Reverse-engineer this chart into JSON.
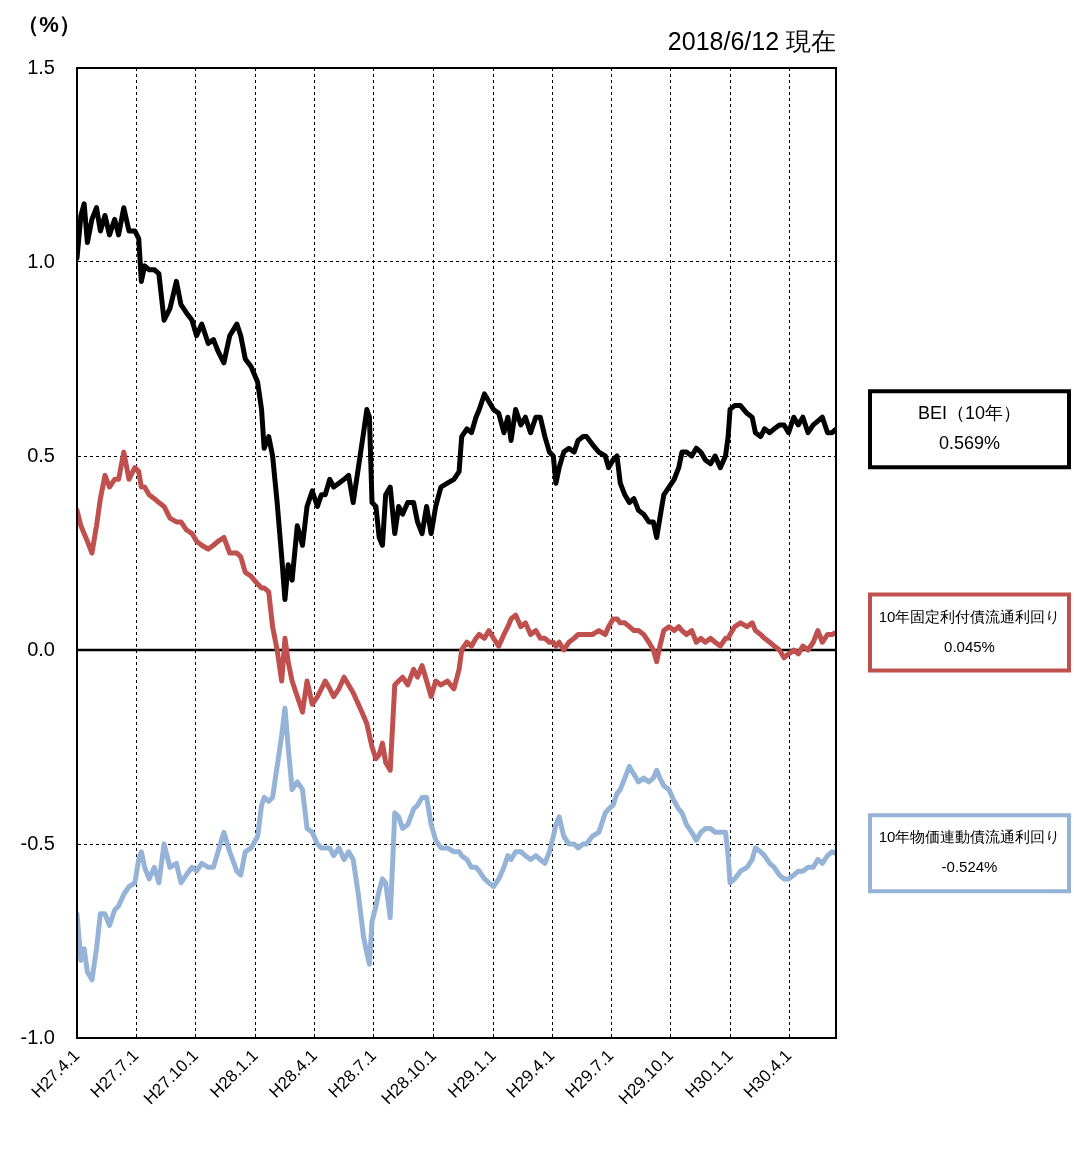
{
  "chart_data": {
    "type": "line",
    "ylabel": "（%）",
    "subtitle": "2018/6/12 現在",
    "x": [
      "2015-04-01",
      "2015-04-07",
      "2015-04-12",
      "2015-04-17",
      "2015-04-24",
      "2015-05-01",
      "2015-05-07",
      "2015-05-14",
      "2015-05-21",
      "2015-05-29",
      "2015-06-04",
      "2015-06-12",
      "2015-06-20",
      "2015-06-29",
      "2015-07-05",
      "2015-07-09",
      "2015-07-14",
      "2015-07-21",
      "2015-07-29",
      "2015-08-05",
      "2015-08-13",
      "2015-08-22",
      "2015-09-01",
      "2015-09-08",
      "2015-09-16",
      "2015-09-25",
      "2015-10-02",
      "2015-10-10",
      "2015-10-20",
      "2015-10-28",
      "2015-11-04",
      "2015-11-13",
      "2015-11-22",
      "2015-12-03",
      "2015-12-09",
      "2015-12-16",
      "2015-12-25",
      "2016-01-04",
      "2016-01-10",
      "2016-01-14",
      "2016-01-21",
      "2016-01-27",
      "2016-02-03",
      "2016-02-10",
      "2016-02-15",
      "2016-02-20",
      "2016-02-26",
      "2016-03-05",
      "2016-03-13",
      "2016-03-20",
      "2016-03-28",
      "2016-04-05",
      "2016-04-11",
      "2016-04-17",
      "2016-04-24",
      "2016-04-30",
      "2016-05-08",
      "2016-05-16",
      "2016-05-23",
      "2016-05-30",
      "2016-06-07",
      "2016-06-15",
      "2016-06-20",
      "2016-06-24",
      "2016-06-28",
      "2016-07-04",
      "2016-07-09",
      "2016-07-14",
      "2016-07-19",
      "2016-07-26",
      "2016-08-02",
      "2016-08-08",
      "2016-08-14",
      "2016-08-22",
      "2016-08-31",
      "2016-09-06",
      "2016-09-13",
      "2016-09-20",
      "2016-09-27",
      "2016-10-04",
      "2016-10-12",
      "2016-10-22",
      "2016-11-01",
      "2016-11-09",
      "2016-11-13",
      "2016-11-21",
      "2016-11-28",
      "2016-12-05",
      "2016-12-10",
      "2016-12-18",
      "2016-12-25",
      "2017-01-01",
      "2017-01-09",
      "2017-01-17",
      "2017-01-23",
      "2017-01-28",
      "2017-02-04",
      "2017-02-12",
      "2017-02-19",
      "2017-02-27",
      "2017-03-07",
      "2017-03-14",
      "2017-03-21",
      "2017-03-28",
      "2017-04-03",
      "2017-04-07",
      "2017-04-12",
      "2017-04-19",
      "2017-04-27",
      "2017-05-05",
      "2017-05-11",
      "2017-05-19",
      "2017-05-24",
      "2017-06-02",
      "2017-06-12",
      "2017-06-22",
      "2017-06-27",
      "2017-07-04",
      "2017-07-10",
      "2017-07-15",
      "2017-07-22",
      "2017-07-29",
      "2017-08-05",
      "2017-08-12",
      "2017-08-20",
      "2017-08-28",
      "2017-09-04",
      "2017-09-09",
      "2017-09-14",
      "2017-09-20",
      "2017-09-28",
      "2017-10-06",
      "2017-10-13",
      "2017-10-18",
      "2017-10-25",
      "2017-11-02",
      "2017-11-09",
      "2017-11-16",
      "2017-11-23",
      "2017-12-01",
      "2017-12-08",
      "2017-12-16",
      "2017-12-24",
      "2017-12-28",
      "2017-12-31",
      "2018-01-07",
      "2018-01-16",
      "2018-01-26",
      "2018-02-03",
      "2018-02-08",
      "2018-02-16",
      "2018-02-22",
      "2018-03-02",
      "2018-03-09",
      "2018-03-17",
      "2018-03-24",
      "2018-03-31",
      "2018-04-08",
      "2018-04-15",
      "2018-04-22",
      "2018-04-30",
      "2018-05-08",
      "2018-05-15",
      "2018-05-22",
      "2018-05-30",
      "2018-06-06",
      "2018-06-12"
    ],
    "series": [
      {
        "name": "BEI（10年）",
        "color": "#000000",
        "values": [
          1.01,
          1.12,
          1.15,
          1.05,
          1.11,
          1.14,
          1.08,
          1.12,
          1.07,
          1.11,
          1.07,
          1.14,
          1.08,
          1.08,
          1.06,
          0.95,
          0.99,
          0.98,
          0.98,
          0.97,
          0.85,
          0.88,
          0.95,
          0.89,
          0.87,
          0.85,
          0.81,
          0.84,
          0.79,
          0.8,
          0.77,
          0.74,
          0.81,
          0.84,
          0.81,
          0.75,
          0.73,
          0.69,
          0.62,
          0.52,
          0.55,
          0.5,
          0.38,
          0.24,
          0.13,
          0.22,
          0.18,
          0.32,
          0.27,
          0.37,
          0.41,
          0.37,
          0.4,
          0.4,
          0.44,
          0.42,
          0.43,
          0.44,
          0.45,
          0.38,
          0.47,
          0.56,
          0.62,
          0.6,
          0.38,
          0.37,
          0.29,
          0.27,
          0.4,
          0.42,
          0.3,
          0.37,
          0.35,
          0.38,
          0.38,
          0.33,
          0.3,
          0.37,
          0.3,
          0.37,
          0.42,
          0.43,
          0.44,
          0.46,
          0.55,
          0.57,
          0.56,
          0.6,
          0.62,
          0.66,
          0.64,
          0.62,
          0.61,
          0.56,
          0.6,
          0.54,
          0.62,
          0.58,
          0.6,
          0.56,
          0.6,
          0.6,
          0.55,
          0.51,
          0.5,
          0.43,
          0.47,
          0.51,
          0.52,
          0.51,
          0.54,
          0.55,
          0.55,
          0.53,
          0.51,
          0.5,
          0.47,
          0.49,
          0.5,
          0.43,
          0.4,
          0.38,
          0.39,
          0.36,
          0.35,
          0.33,
          0.33,
          0.29,
          0.34,
          0.4,
          0.42,
          0.44,
          0.47,
          0.51,
          0.51,
          0.5,
          0.52,
          0.51,
          0.49,
          0.48,
          0.5,
          0.47,
          0.5,
          0.55,
          0.62,
          0.63,
          0.63,
          0.61,
          0.6,
          0.56,
          0.55,
          0.57,
          0.56,
          0.57,
          0.58,
          0.58,
          0.56,
          0.6,
          0.58,
          0.6,
          0.56,
          0.58,
          0.59,
          0.6,
          0.56,
          0.56,
          0.569
        ]
      },
      {
        "name": "10年固定利付債流通利回り",
        "color": "#c0504d",
        "values": [
          0.36,
          0.32,
          0.3,
          0.28,
          0.25,
          0.32,
          0.39,
          0.45,
          0.42,
          0.44,
          0.44,
          0.51,
          0.44,
          0.47,
          0.46,
          0.42,
          0.42,
          0.4,
          0.39,
          0.38,
          0.37,
          0.34,
          0.33,
          0.33,
          0.31,
          0.3,
          0.28,
          0.27,
          0.26,
          0.27,
          0.28,
          0.29,
          0.25,
          0.25,
          0.24,
          0.2,
          0.19,
          0.17,
          0.16,
          0.16,
          0.15,
          0.06,
          0.0,
          -0.08,
          0.03,
          -0.03,
          -0.08,
          -0.12,
          -0.16,
          -0.08,
          -0.14,
          -0.12,
          -0.1,
          -0.08,
          -0.1,
          -0.12,
          -0.1,
          -0.07,
          -0.09,
          -0.11,
          -0.14,
          -0.17,
          -0.19,
          -0.22,
          -0.25,
          -0.28,
          -0.27,
          -0.24,
          -0.29,
          -0.31,
          -0.09,
          -0.08,
          -0.07,
          -0.09,
          -0.05,
          -0.07,
          -0.04,
          -0.08,
          -0.12,
          -0.08,
          -0.09,
          -0.08,
          -0.1,
          -0.05,
          0.0,
          0.02,
          0.01,
          0.03,
          0.04,
          0.03,
          0.05,
          0.03,
          0.01,
          0.04,
          0.06,
          0.08,
          0.09,
          0.06,
          0.07,
          0.04,
          0.05,
          0.03,
          0.03,
          0.02,
          0.02,
          0.01,
          0.02,
          0.0,
          0.02,
          0.03,
          0.04,
          0.04,
          0.04,
          0.04,
          0.05,
          0.04,
          0.06,
          0.08,
          0.08,
          0.07,
          0.07,
          0.06,
          0.05,
          0.05,
          0.04,
          0.02,
          0.0,
          -0.03,
          0.01,
          0.05,
          0.06,
          0.05,
          0.06,
          0.05,
          0.04,
          0.05,
          0.02,
          0.03,
          0.02,
          0.03,
          0.02,
          0.01,
          0.03,
          0.03,
          0.04,
          0.06,
          0.07,
          0.06,
          0.07,
          0.05,
          0.04,
          0.03,
          0.02,
          0.01,
          0.0,
          -0.02,
          -0.01,
          0.0,
          -0.01,
          0.01,
          0.0,
          0.02,
          0.05,
          0.02,
          0.04,
          0.04,
          0.045
        ]
      },
      {
        "name": "10年物価連動債流通利回り",
        "color": "#95b3d7",
        "values": [
          -0.68,
          -0.8,
          -0.77,
          -0.83,
          -0.85,
          -0.77,
          -0.68,
          -0.68,
          -0.71,
          -0.67,
          -0.66,
          -0.63,
          -0.61,
          -0.6,
          -0.54,
          -0.52,
          -0.56,
          -0.59,
          -0.56,
          -0.6,
          -0.5,
          -0.56,
          -0.55,
          -0.6,
          -0.58,
          -0.56,
          -0.57,
          -0.55,
          -0.56,
          -0.56,
          -0.52,
          -0.47,
          -0.52,
          -0.57,
          -0.58,
          -0.52,
          -0.51,
          -0.48,
          -0.4,
          -0.38,
          -0.39,
          -0.38,
          -0.3,
          -0.22,
          -0.15,
          -0.25,
          -0.36,
          -0.34,
          -0.36,
          -0.46,
          -0.47,
          -0.5,
          -0.51,
          -0.51,
          -0.51,
          -0.53,
          -0.51,
          -0.54,
          -0.52,
          -0.54,
          -0.63,
          -0.74,
          -0.78,
          -0.81,
          -0.7,
          -0.66,
          -0.62,
          -0.59,
          -0.6,
          -0.69,
          -0.42,
          -0.43,
          -0.46,
          -0.45,
          -0.41,
          -0.4,
          -0.38,
          -0.38,
          -0.45,
          -0.49,
          -0.51,
          -0.51,
          -0.52,
          -0.52,
          -0.53,
          -0.54,
          -0.56,
          -0.56,
          -0.57,
          -0.59,
          -0.6,
          -0.61,
          -0.59,
          -0.56,
          -0.53,
          -0.54,
          -0.52,
          -0.52,
          -0.53,
          -0.54,
          -0.53,
          -0.54,
          -0.55,
          -0.52,
          -0.48,
          -0.45,
          -0.43,
          -0.48,
          -0.5,
          -0.5,
          -0.51,
          -0.5,
          -0.5,
          -0.48,
          -0.47,
          -0.42,
          -0.41,
          -0.4,
          -0.37,
          -0.36,
          -0.33,
          -0.3,
          -0.32,
          -0.34,
          -0.33,
          -0.34,
          -0.33,
          -0.31,
          -0.33,
          -0.35,
          -0.36,
          -0.39,
          -0.41,
          -0.42,
          -0.45,
          -0.47,
          -0.49,
          -0.47,
          -0.46,
          -0.46,
          -0.47,
          -0.47,
          -0.47,
          -0.53,
          -0.6,
          -0.59,
          -0.57,
          -0.56,
          -0.54,
          -0.51,
          -0.52,
          -0.53,
          -0.55,
          -0.56,
          -0.58,
          -0.59,
          -0.59,
          -0.58,
          -0.57,
          -0.57,
          -0.56,
          -0.56,
          -0.54,
          -0.55,
          -0.53,
          -0.52,
          -0.524
        ]
      }
    ],
    "annotations": [
      "0.569%",
      "0.045%",
      "-0.524%"
    ],
    "xlim": [
      "2015-04-01",
      "2018-06-12"
    ],
    "xticks": [
      {
        "value": "2015-04-01",
        "label": "H27.4.1"
      },
      {
        "value": "2015-07-01",
        "label": "H27.7.1"
      },
      {
        "value": "2015-10-01",
        "label": "H27.10.1"
      },
      {
        "value": "2016-01-01",
        "label": "H28.1.1"
      },
      {
        "value": "2016-04-01",
        "label": "H28.4.1"
      },
      {
        "value": "2016-07-01",
        "label": "H28.7.1"
      },
      {
        "value": "2016-10-01",
        "label": "H28.10.1"
      },
      {
        "value": "2017-01-01",
        "label": "H29.1.1"
      },
      {
        "value": "2017-04-01",
        "label": "H29.4.1"
      },
      {
        "value": "2017-07-01",
        "label": "H29.7.1"
      },
      {
        "value": "2017-10-01",
        "label": "H29.10.1"
      },
      {
        "value": "2018-01-01",
        "label": "H30.1.1"
      },
      {
        "value": "2018-04-01",
        "label": "H30.4.1"
      }
    ],
    "ylim": [
      -1.0,
      1.5
    ],
    "yticks": [
      {
        "value": -1,
        "label": "-1.0"
      },
      -0.5,
      {
        "value": 0,
        "label": "0.0"
      },
      0.5,
      {
        "value": 1,
        "label": "1.0"
      },
      1.5
    ],
    "ref_lines": [
      {
        "axis": "y",
        "value": 0,
        "color": "#000000"
      }
    ],
    "grid": true,
    "legend": "right",
    "marker": "none",
    "line_style": "solid"
  }
}
